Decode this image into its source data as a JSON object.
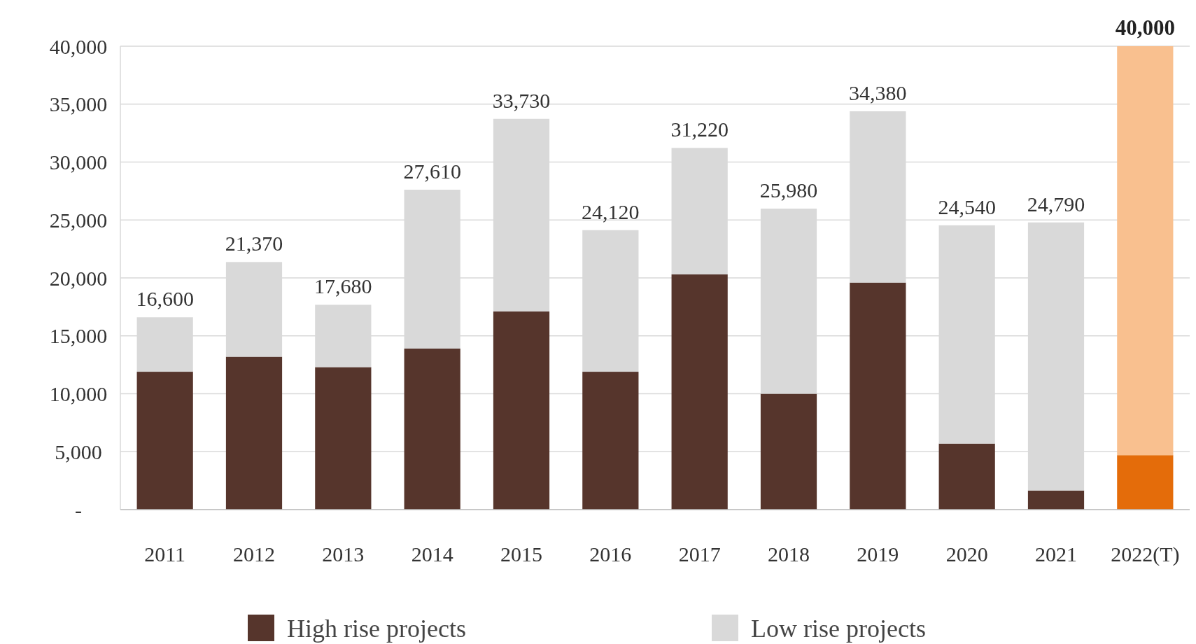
{
  "chart_data": {
    "type": "bar",
    "stacked": true,
    "categories": [
      "2011",
      "2012",
      "2013",
      "2014",
      "2015",
      "2016",
      "2017",
      "2018",
      "2019",
      "2020",
      "2021",
      "2022(T)"
    ],
    "series": [
      {
        "name": "High rise projects",
        "color": "#56352c",
        "colors": [
          "#56352c",
          "#56352c",
          "#56352c",
          "#56352c",
          "#56352c",
          "#56352c",
          "#56352c",
          "#56352c",
          "#56352c",
          "#56352c",
          "#56352c",
          "#e46c0a"
        ],
        "values": [
          11900,
          13200,
          12300,
          13900,
          17100,
          11900,
          20300,
          10000,
          19600,
          5700,
          1650,
          4700
        ]
      },
      {
        "name": "Low rise projects",
        "color": "#d9d9d9",
        "colors": [
          "#d9d9d9",
          "#d9d9d9",
          "#d9d9d9",
          "#d9d9d9",
          "#d9d9d9",
          "#d9d9d9",
          "#d9d9d9",
          "#d9d9d9",
          "#d9d9d9",
          "#d9d9d9",
          "#d9d9d9",
          "#f9c08f"
        ],
        "values": [
          4700,
          8170,
          5380,
          13710,
          16630,
          12220,
          10920,
          15980,
          14780,
          18840,
          23140,
          35300
        ]
      }
    ],
    "totals": [
      "16,600",
      "21,370",
      "17,680",
      "27,610",
      "33,730",
      "24,120",
      "31,220",
      "25,980",
      "34,380",
      "24,540",
      "24,790",
      "40,000"
    ],
    "ylim": [
      0,
      40000
    ],
    "yticks": [
      {
        "value": 0,
        "label": "-"
      },
      {
        "value": 5000,
        "label": "5,000"
      },
      {
        "value": 10000,
        "label": "10,000"
      },
      {
        "value": 15000,
        "label": "15,000"
      },
      {
        "value": 20000,
        "label": "20,000"
      },
      {
        "value": 25000,
        "label": "25,000"
      },
      {
        "value": 30000,
        "label": "30,000"
      },
      {
        "value": 35000,
        "label": "35,000"
      },
      {
        "value": 40000,
        "label": "40,000"
      }
    ],
    "grid": "y",
    "legend": "bottom"
  }
}
